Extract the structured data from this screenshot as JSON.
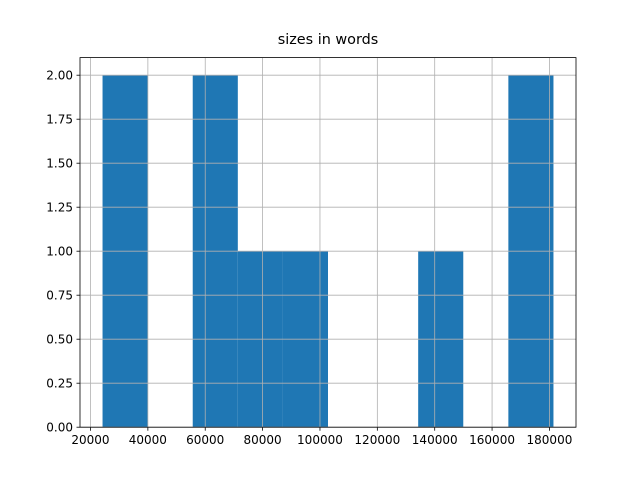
{
  "chart_data": {
    "type": "histogram",
    "title": "sizes in words",
    "bins": [
      24200,
      39920,
      55640,
      71360,
      87080,
      102800,
      118520,
      134240,
      149960,
      165680,
      181400
    ],
    "values": [
      2,
      0,
      2,
      1,
      1,
      0,
      0,
      1,
      0,
      2
    ],
    "color": "#1f77b4",
    "xlim": [
      16340,
      189260
    ],
    "xticks": [
      20000,
      40000,
      60000,
      80000,
      100000,
      120000,
      140000,
      160000,
      180000
    ],
    "ylim": [
      0,
      2.1
    ],
    "yticks": [
      {
        "value": 0,
        "label": "0.00"
      },
      {
        "value": 0.25,
        "label": "0.25"
      },
      {
        "value": 0.5,
        "label": "0.50"
      },
      {
        "value": 0.75,
        "label": "0.75"
      },
      {
        "value": 1,
        "label": "1.00"
      },
      {
        "value": 1.25,
        "label": "1.25"
      },
      {
        "value": 1.5,
        "label": "1.50"
      },
      {
        "value": 1.75,
        "label": "1.75"
      },
      {
        "value": 2,
        "label": "2.00"
      }
    ],
    "grid": true
  }
}
